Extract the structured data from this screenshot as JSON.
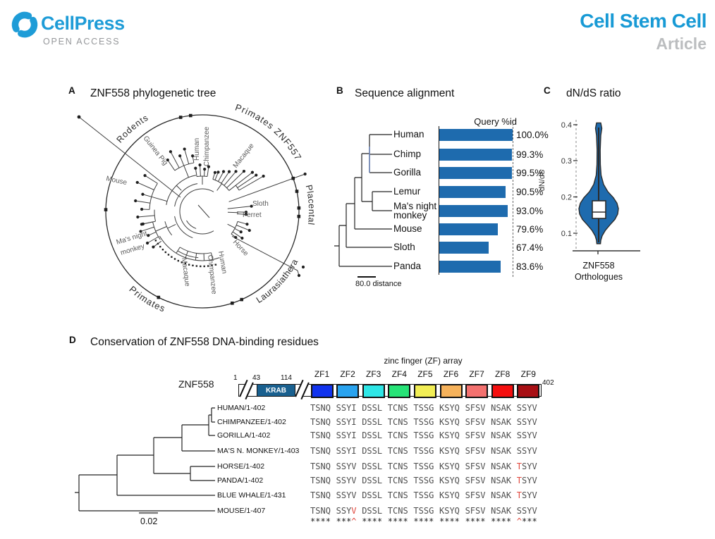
{
  "header": {
    "brand": "CellPress",
    "open_access": "OPEN ACCESS",
    "journal": "Cell Stem Cell",
    "article_type": "Article",
    "brand_color": "#1E9CD7"
  },
  "panel_a": {
    "label": "A",
    "title": "ZNF558 phylogenetic tree",
    "arc_labels": {
      "rodents": "Rodents",
      "primates_znf557": "Primates ZNF557",
      "placental": "Placental",
      "laurasiatheria": "Laurasiathera",
      "primates": "Primates"
    },
    "leaf_labels": {
      "guinea_pig": "Guinea Pig",
      "mouse": "Mouse",
      "human_top": "Human",
      "chimpanzee_top": "Chimpanzee",
      "macaque_top": "Macaque",
      "sloth": "Sloth",
      "ferret": "Ferret",
      "horse": "Horse",
      "mas_night_line1": "Ma's night",
      "mas_night_line2": "monkey",
      "macaque_bottom": "Macaque",
      "human_bottom": "Human",
      "chimpanzee_bottom": "Chimpanzee"
    }
  },
  "panel_b": {
    "label": "B",
    "title": "Sequence alignment",
    "column_header": "Query %id",
    "scale_bar_label": "80.0 distance",
    "chart_data": {
      "type": "bar",
      "orientation": "horizontal",
      "categories": [
        "Human",
        "Chimp",
        "Gorilla",
        "Lemur",
        "Ma's night\nmonkey",
        "Mouse",
        "Sloth",
        "Panda"
      ],
      "values": [
        100.0,
        99.3,
        99.5,
        90.5,
        93.0,
        79.6,
        67.4,
        83.6
      ],
      "value_labels": [
        "100.0%",
        "99.3%",
        "99.5%",
        "90.5%",
        "93.0%",
        "79.6%",
        "67.4%",
        "83.6%"
      ],
      "xlim": [
        0,
        100
      ],
      "bar_color": "#1E6BAE"
    }
  },
  "panel_c": {
    "label": "C",
    "title": "dN/dS ratio",
    "ylabel": "dN/dS",
    "yticks": [
      "0.4",
      "0.3",
      "0.2",
      "0.1"
    ],
    "xlabel_line1": "ZNF558",
    "xlabel_line2": "Orthologues",
    "chart_data": {
      "type": "violin",
      "group": "ZNF558 Orthologues",
      "ylabel": "dN/dS",
      "ylim": [
        0.05,
        0.42
      ],
      "median": 0.16,
      "q1": 0.145,
      "q3": 0.19,
      "min": 0.07,
      "max": 0.4,
      "fill_color": "#1E6BAE"
    }
  },
  "panel_d": {
    "label": "D",
    "title": "Conservation of ZNF558 DNA-binding residues",
    "protein": {
      "name": "ZNF558",
      "start_num": "1",
      "krab_start": "43",
      "krab_end": "114",
      "end_num": "402",
      "krab_label": "KRAB",
      "krab_color": "#19608F",
      "array_label": "zinc finger (ZF) array",
      "zf_labels": [
        "ZF1",
        "ZF2",
        "ZF3",
        "ZF4",
        "ZF5",
        "ZF6",
        "ZF7",
        "ZF8",
        "ZF9"
      ],
      "zf_colors": [
        "#1133EE",
        "#29A3EF",
        "#2EE6E6",
        "#27E377",
        "#F2EE55",
        "#F6B25B",
        "#F3716F",
        "#F50F0F",
        "#A80F14"
      ]
    },
    "scale_bar_label": "0.02",
    "alignment": {
      "red_color": "#E0473D",
      "rows": [
        {
          "label": "HUMAN/1-402",
          "groups": [
            "TSNQ",
            "SSYI",
            "DSSL",
            "TCNS",
            "TSSG",
            "KSYQ",
            "SFSV",
            "NSAK",
            "SSYV"
          ],
          "red": []
        },
        {
          "label": "CHIMPANZEE/1-402",
          "groups": [
            "TSNQ",
            "SSYI",
            "DSSL",
            "TCNS",
            "TSSG",
            "KSYQ",
            "SFSV",
            "NSAK",
            "SSYV"
          ],
          "red": []
        },
        {
          "label": "GORILLA/1-402",
          "groups": [
            "TSNQ",
            "SSYI",
            "DSSL",
            "TCNS",
            "TSSG",
            "KSYQ",
            "SFSV",
            "NSAK",
            "SSYV"
          ],
          "red": []
        },
        {
          "label": "MA'S N. MONKEY/1-403",
          "groups": [
            "TSNQ",
            "SSYI",
            "DSSL",
            "TCNS",
            "TSSG",
            "KSYQ",
            "SFSV",
            "NSAK",
            "SSYV"
          ],
          "red": []
        },
        {
          "label": "HORSE/1-402",
          "groups": [
            "TSNQ",
            "SSYV",
            "DSSL",
            "TCNS",
            "TSSG",
            "KSYQ",
            "SFSV",
            "NSAK",
            "TSYV"
          ],
          "red": [
            [
              8,
              0
            ]
          ]
        },
        {
          "label": "PANDA/1-402",
          "groups": [
            "TSNQ",
            "SSYV",
            "DSSL",
            "TCNS",
            "TSSG",
            "KSYQ",
            "SFSV",
            "NSAK",
            "TSYV"
          ],
          "red": [
            [
              8,
              0
            ]
          ]
        },
        {
          "label": "BLUE WHALE/1-431",
          "groups": [
            "TSNQ",
            "SSYV",
            "DSSL",
            "TCNS",
            "TSSG",
            "KSYQ",
            "SFSV",
            "NSAK",
            "TSYV"
          ],
          "red": [
            [
              8,
              0
            ]
          ]
        },
        {
          "label": "MOUSE/1-407",
          "groups": [
            "TSNQ",
            "SSYV",
            "DSSL",
            "TCNS",
            "TSSG",
            "KSYQ",
            "SFSV",
            "NSAK",
            "SSYV"
          ],
          "red": [
            [
              1,
              3
            ]
          ]
        }
      ],
      "consensus": {
        "groups": [
          "****",
          "***^",
          "****",
          "****",
          "****",
          "****",
          "****",
          "****",
          "^***"
        ],
        "red": [
          [
            1,
            3
          ],
          [
            8,
            0
          ]
        ]
      }
    }
  }
}
